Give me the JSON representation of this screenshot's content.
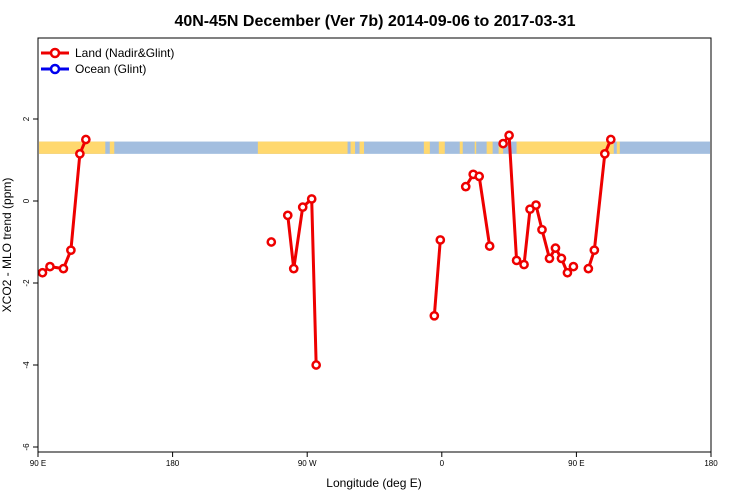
{
  "chart_data": {
    "type": "line",
    "title": "40N-45N December (Ver 7b)   2014-09-06 to 2017-03-31",
    "xlabel": "Longitude (deg E)",
    "ylabel": "XCO2 - MLO trend (ppm)",
    "xlim": [
      90,
      540
    ],
    "ylim": [
      -6,
      4
    ],
    "x_ticks": [
      {
        "value": 90,
        "label": "90 E"
      },
      {
        "value": 180,
        "label": "180"
      },
      {
        "value": 270,
        "label": "90 W"
      },
      {
        "value": 360,
        "label": "0"
      },
      {
        "value": 450,
        "label": "90 E"
      },
      {
        "value": 540,
        "label": "180"
      }
    ],
    "y_ticks": [
      {
        "value": -6,
        "label": "-6"
      },
      {
        "value": -4,
        "label": "-4"
      },
      {
        "value": -2,
        "label": "-2"
      },
      {
        "value": 0,
        "label": "0"
      },
      {
        "value": 2,
        "label": "2"
      }
    ],
    "legend": {
      "placement": "top-left",
      "entries": [
        {
          "name": "Land (Nadir&Glint)",
          "color": "#ee0000"
        },
        {
          "name": "Ocean (Glint)",
          "color": "#0000ee"
        }
      ]
    },
    "land_ocean_strip": {
      "y_range": [
        1.15,
        1.45
      ],
      "land_color": "#ffd86e",
      "ocean_color": "#a3bedf",
      "land_segments": [
        [
          90,
          135
        ],
        [
          138,
          141
        ],
        [
          237,
          297
        ],
        [
          299,
          302
        ],
        [
          305,
          308
        ],
        [
          348,
          352
        ],
        [
          358,
          362
        ],
        [
          372,
          374
        ],
        [
          382,
          383
        ],
        [
          390,
          394
        ],
        [
          398,
          401
        ],
        [
          410,
          475
        ],
        [
          477,
          479
        ]
      ]
    },
    "series": [
      {
        "name": "Land (Nadir&Glint)",
        "color": "#ee0000",
        "segments": [
          [
            [
              93,
              -1.75
            ],
            [
              98,
              -1.6
            ],
            [
              107,
              -1.65
            ],
            [
              112,
              -1.2
            ],
            [
              118,
              1.15
            ],
            [
              122,
              1.5
            ]
          ],
          [
            [
              246,
              -1.0
            ]
          ],
          [
            [
              257,
              -0.35
            ],
            [
              261,
              -1.65
            ],
            [
              267,
              -0.15
            ],
            [
              273,
              0.05
            ],
            [
              276,
              -4.0
            ]
          ],
          [
            [
              355,
              -2.8
            ],
            [
              359,
              -0.95
            ]
          ],
          [
            [
              376,
              0.35
            ],
            [
              381,
              0.65
            ],
            [
              385,
              0.6
            ],
            [
              392,
              -1.1
            ]
          ],
          [
            [
              401,
              1.4
            ],
            [
              405,
              1.6
            ],
            [
              410,
              -1.45
            ],
            [
              415,
              -1.55
            ],
            [
              419,
              -0.2
            ],
            [
              423,
              -0.1
            ],
            [
              427,
              -0.7
            ],
            [
              432,
              -1.4
            ],
            [
              436,
              -1.15
            ],
            [
              440,
              -1.4
            ],
            [
              444,
              -1.75
            ],
            [
              448,
              -1.6
            ]
          ],
          [
            [
              458,
              -1.65
            ],
            [
              462,
              -1.2
            ],
            [
              469,
              1.15
            ],
            [
              473,
              1.5
            ]
          ]
        ]
      },
      {
        "name": "Ocean (Glint)",
        "color": "#0000ee",
        "segments": []
      }
    ]
  }
}
